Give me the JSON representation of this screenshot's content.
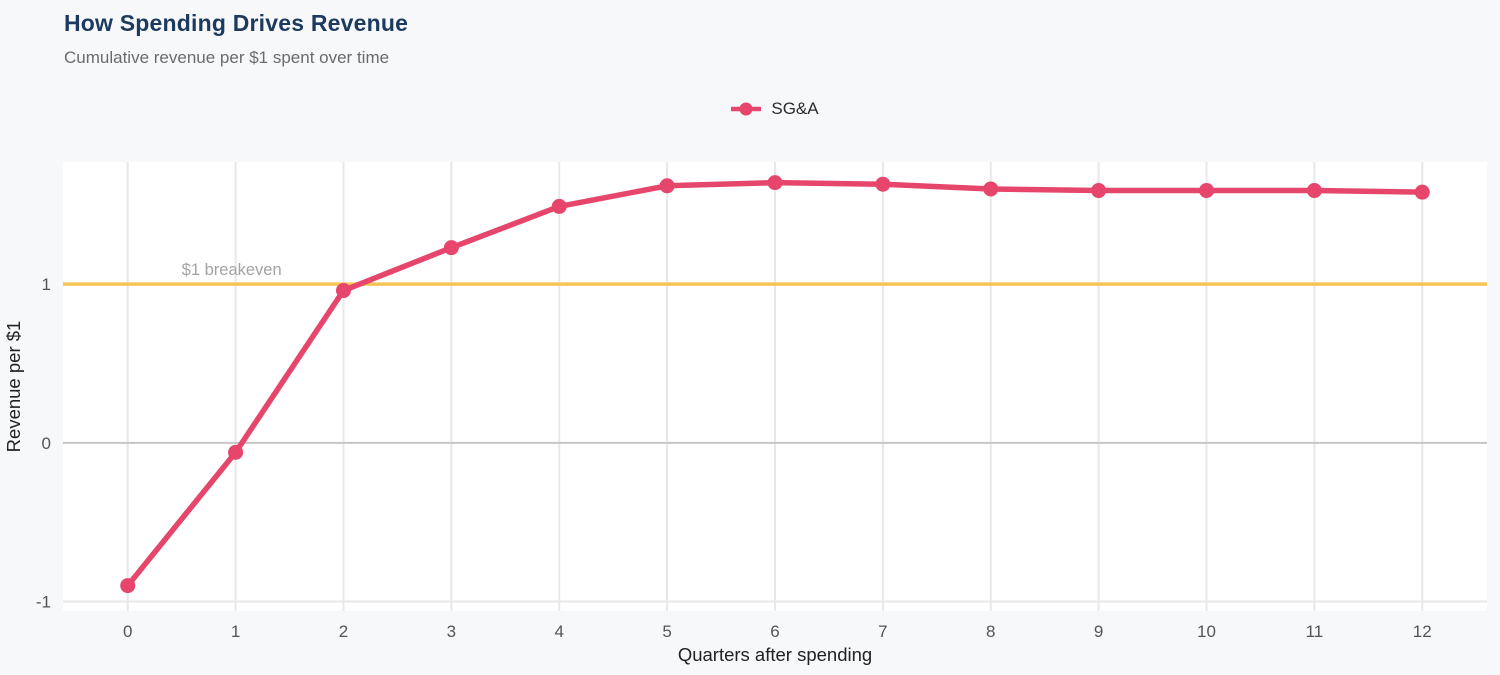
{
  "header": {
    "title": "How Spending Drives Revenue",
    "subtitle": "Cumulative revenue per $1 spent over time"
  },
  "legend": {
    "position": "top-center",
    "items": [
      {
        "label": "SG&A",
        "marker": "line-with-dot"
      }
    ]
  },
  "colors": {
    "title": "#1c3a5f",
    "subtitle": "#6b6b6b",
    "accent": "#e6466b",
    "breakeven": "#f8c455",
    "page_bg": "#f7f8fa",
    "plot_bg": "#ffffff",
    "grid": "#e8e8e8",
    "zero_line": "#c6c6c6",
    "tick_text": "#555555",
    "axis_title_text": "#222222",
    "annotation_text": "#a3a3a3",
    "legend_text": "#2b2b33"
  },
  "chart_data": {
    "type": "line",
    "title": "How Spending Drives Revenue",
    "subtitle": "Cumulative revenue per $1 spent over time",
    "xlabel": "Quarters after spending",
    "ylabel": "Revenue per $1",
    "x": [
      0,
      1,
      2,
      3,
      4,
      5,
      6,
      7,
      8,
      9,
      10,
      11,
      12
    ],
    "series": [
      {
        "name": "SG&A",
        "color": "#e6466b",
        "values": [
          -0.9,
          -0.06,
          0.96,
          1.23,
          1.49,
          1.62,
          1.64,
          1.63,
          1.6,
          1.59,
          1.59,
          1.59,
          1.58
        ]
      }
    ],
    "xticks": [
      0,
      1,
      2,
      3,
      4,
      5,
      6,
      7,
      8,
      9,
      10,
      11,
      12
    ],
    "yticks": [
      -1,
      0,
      1
    ],
    "xlim": [
      -0.6,
      12.6
    ],
    "ylim": [
      -1.06,
      1.77
    ],
    "grid": "vertical-gridlines-plus-horizontal-ticks",
    "legend_position": "top-center",
    "reference_line": {
      "y": 1,
      "label": "$1 breakeven",
      "label_x": 0.5,
      "color": "#f8c455"
    }
  }
}
